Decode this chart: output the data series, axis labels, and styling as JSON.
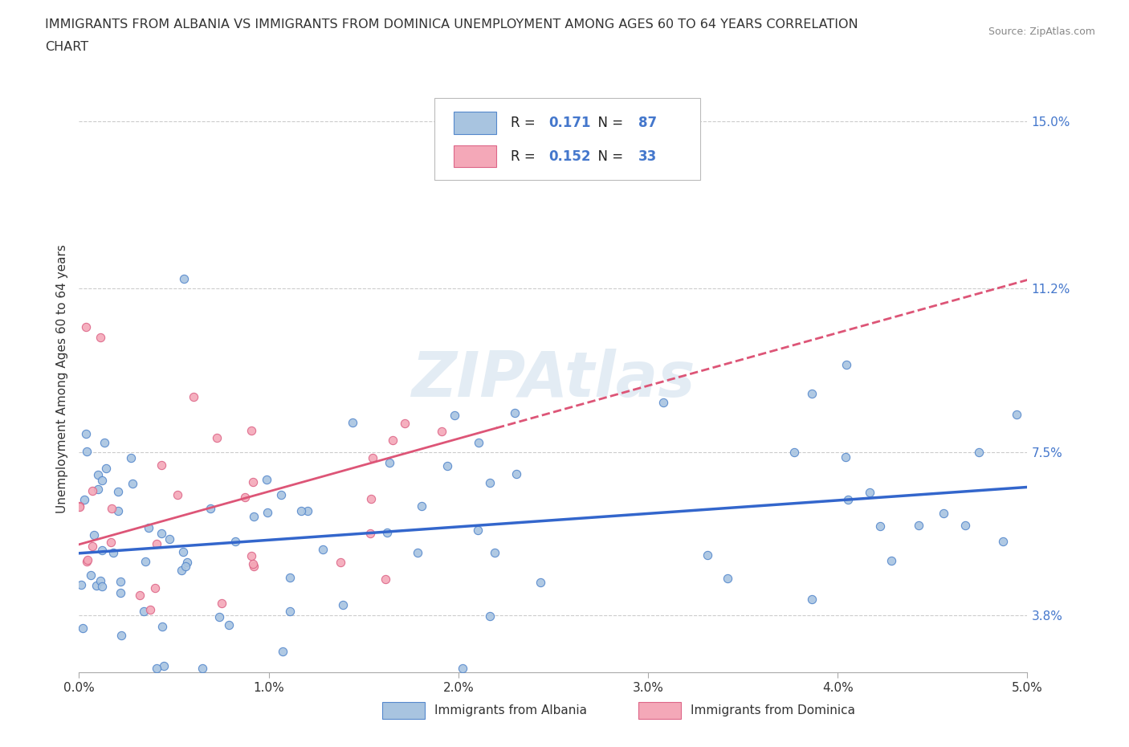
{
  "title_line1": "IMMIGRANTS FROM ALBANIA VS IMMIGRANTS FROM DOMINICA UNEMPLOYMENT AMONG AGES 60 TO 64 YEARS CORRELATION",
  "title_line2": "CHART",
  "source": "Source: ZipAtlas.com",
  "ylabel": "Unemployment Among Ages 60 to 64 years",
  "xmin": 0.0,
  "xmax": 0.05,
  "ymin": 0.025,
  "ymax": 0.158,
  "xtick_vals": [
    0.0,
    0.01,
    0.02,
    0.03,
    0.04,
    0.05
  ],
  "xtick_labels": [
    "0.0%",
    "1.0%",
    "2.0%",
    "3.0%",
    "4.0%",
    "5.0%"
  ],
  "ytick_vals": [
    0.038,
    0.075,
    0.112,
    0.15
  ],
  "ytick_labels": [
    "3.8%",
    "7.5%",
    "11.2%",
    "15.0%"
  ],
  "color_albania_fill": "#a8c4e0",
  "color_albania_edge": "#5588cc",
  "color_dominica_fill": "#f4a8b8",
  "color_dominica_edge": "#dd6688",
  "line_albania_color": "#3366cc",
  "line_dominica_color": "#dd5577",
  "r_albania": "0.171",
  "n_albania": "87",
  "r_dominica": "0.152",
  "n_dominica": "33",
  "watermark": "ZIPAtlas",
  "legend_bottom_label_albania": "Immigrants from Albania",
  "legend_bottom_label_dominica": "Immigrants from Dominica"
}
